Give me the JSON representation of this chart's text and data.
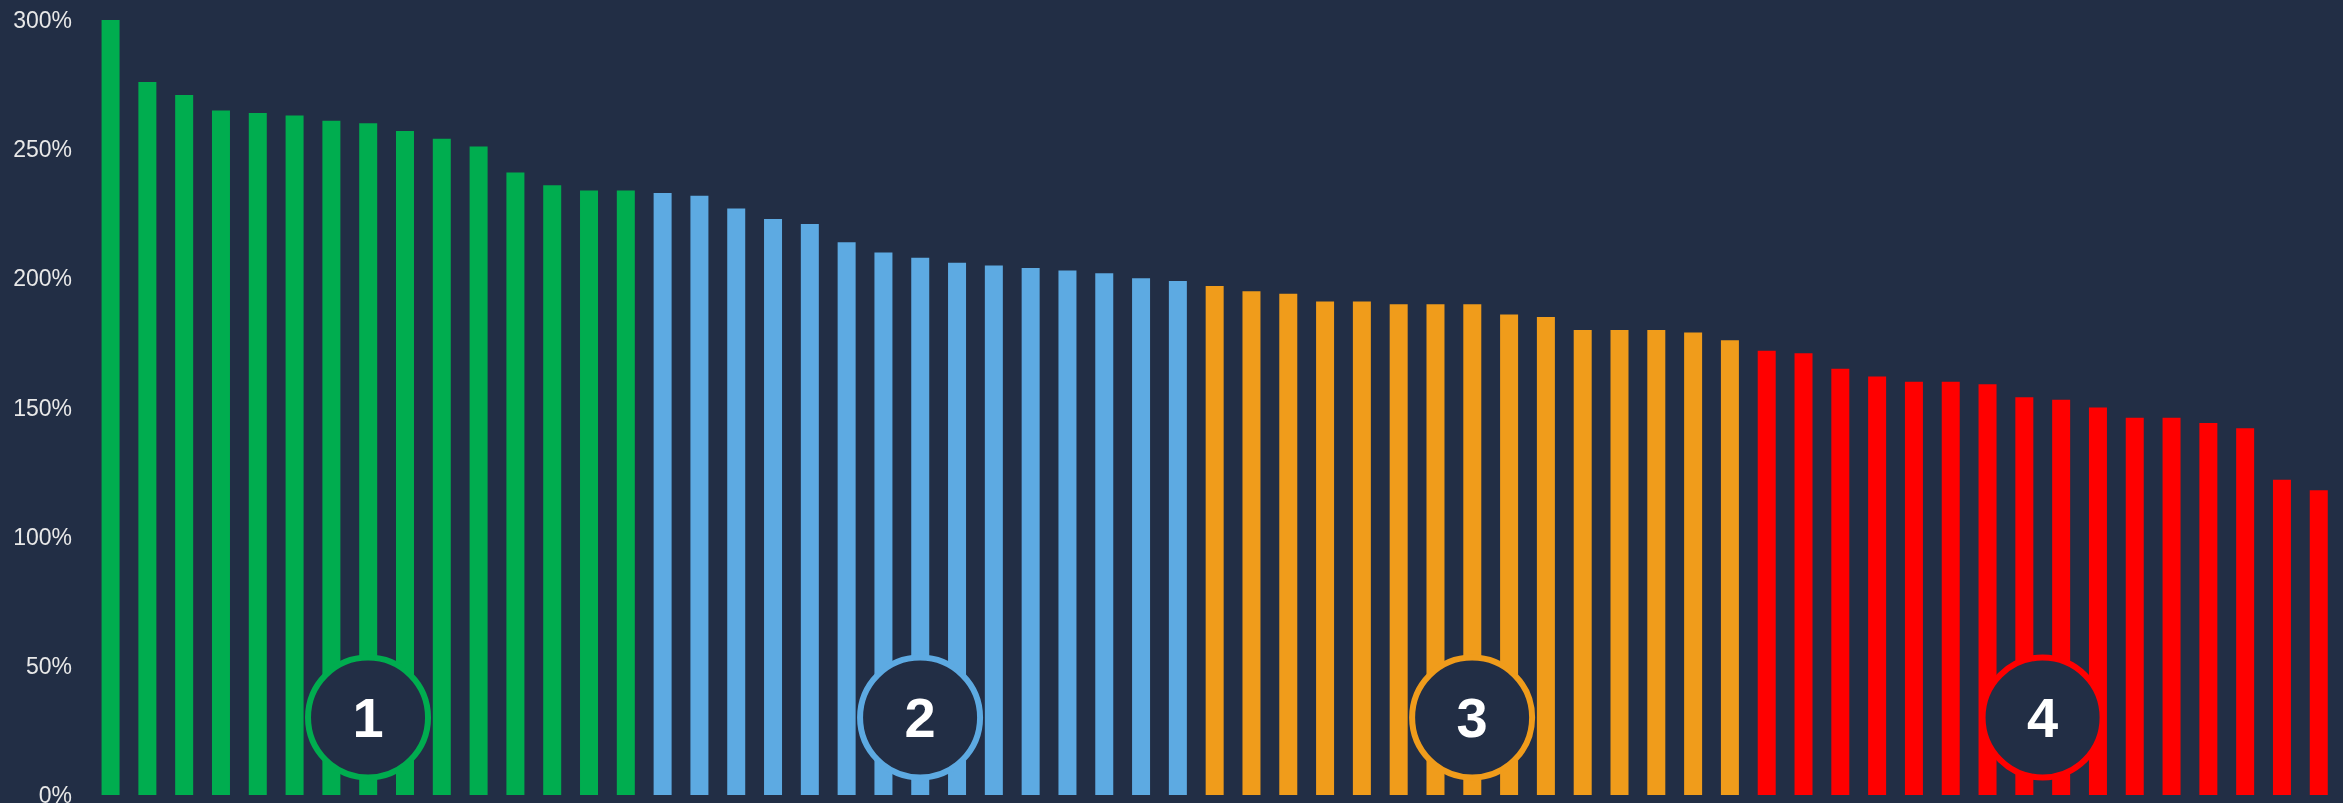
{
  "chart_data": {
    "type": "bar",
    "categories": [
      null,
      null,
      null,
      null,
      null,
      null,
      null,
      null,
      null,
      null,
      null,
      null,
      null,
      null,
      null,
      null,
      null,
      null,
      null,
      null,
      null,
      null,
      null,
      null,
      null,
      null,
      null,
      null,
      null,
      null,
      null,
      null,
      null,
      null,
      null,
      null,
      null,
      null,
      null,
      null,
      null,
      null,
      null,
      null,
      null,
      null,
      null,
      null,
      null,
      null,
      null,
      null,
      null,
      null,
      null,
      null,
      null,
      null,
      null,
      null,
      null
    ],
    "values": [
      300,
      276,
      271,
      265,
      264,
      263,
      261,
      260,
      257,
      254,
      251,
      241,
      236,
      234,
      234,
      233,
      232,
      227,
      223,
      221,
      214,
      210,
      208,
      206,
      205,
      204,
      203,
      202,
      200,
      199,
      197,
      195,
      194,
      191,
      191,
      190,
      190,
      190,
      186,
      185,
      180,
      180,
      180,
      179,
      176,
      172,
      171,
      165,
      162,
      160,
      160,
      159,
      154,
      153,
      150,
      146,
      146,
      144,
      142,
      122,
      118
    ],
    "colors": [
      "#00ad4f",
      "#00ad4f",
      "#00ad4f",
      "#00ad4f",
      "#00ad4f",
      "#00ad4f",
      "#00ad4f",
      "#00ad4f",
      "#00ad4f",
      "#00ad4f",
      "#00ad4f",
      "#00ad4f",
      "#00ad4f",
      "#00ad4f",
      "#00ad4f",
      "#5daae2",
      "#5daae2",
      "#5daae2",
      "#5daae2",
      "#5daae2",
      "#5daae2",
      "#5daae2",
      "#5daae2",
      "#5daae2",
      "#5daae2",
      "#5daae2",
      "#5daae2",
      "#5daae2",
      "#5daae2",
      "#5daae2",
      "#f09c1b",
      "#f09c1b",
      "#f09c1b",
      "#f09c1b",
      "#f09c1b",
      "#f09c1b",
      "#f09c1b",
      "#f09c1b",
      "#f09c1b",
      "#f09c1b",
      "#f09c1b",
      "#f09c1b",
      "#f09c1b",
      "#f09c1b",
      "#f09c1b",
      "#ff0000",
      "#ff0000",
      "#ff0000",
      "#ff0000",
      "#ff0000",
      "#ff0000",
      "#ff0000",
      "#ff0000",
      "#ff0000",
      "#ff0000",
      "#ff0000",
      "#ff0000",
      "#ff0000",
      "#ff0000",
      "#ff0000",
      "#ff0000"
    ],
    "ylim": [
      0,
      300
    ],
    "yticks": [
      {
        "value": 0,
        "label": "0%"
      },
      {
        "value": 50,
        "label": "50%"
      },
      {
        "value": 100,
        "label": "100%"
      },
      {
        "value": 150,
        "label": "150%"
      },
      {
        "value": 200,
        "label": "200%"
      },
      {
        "value": 250,
        "label": "250%"
      },
      {
        "value": 300,
        "label": "300%"
      }
    ],
    "grid": false,
    "annotations": [
      "1",
      "2",
      "3",
      "4"
    ]
  }
}
